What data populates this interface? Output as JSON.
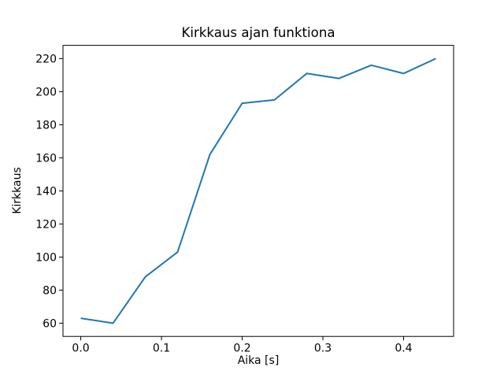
{
  "chart_data": {
    "type": "line",
    "title": "Kirkkaus ajan funktiona",
    "xlabel": "Aika [s]",
    "ylabel": "Kirkkaus",
    "x": [
      0.0,
      0.04,
      0.08,
      0.12,
      0.16,
      0.2,
      0.24,
      0.28,
      0.32,
      0.36,
      0.4,
      0.44
    ],
    "y": [
      63,
      60,
      88,
      103,
      162,
      193,
      195,
      211,
      208,
      216,
      211,
      220
    ],
    "xlim": [
      -0.022,
      0.462
    ],
    "ylim": [
      52,
      228
    ],
    "xticks": [
      0.0,
      0.1,
      0.2,
      0.3,
      0.4
    ],
    "xtick_labels": [
      "0.0",
      "0.1",
      "0.2",
      "0.3",
      "0.4"
    ],
    "yticks": [
      60,
      80,
      100,
      120,
      140,
      160,
      180,
      200,
      220
    ],
    "ytick_labels": [
      "60",
      "80",
      "100",
      "120",
      "140",
      "160",
      "180",
      "200",
      "220"
    ],
    "line_color": "#1f77b4",
    "axis_color": "#000000",
    "background_color": "#ffffff",
    "grid": false,
    "legend": null
  }
}
